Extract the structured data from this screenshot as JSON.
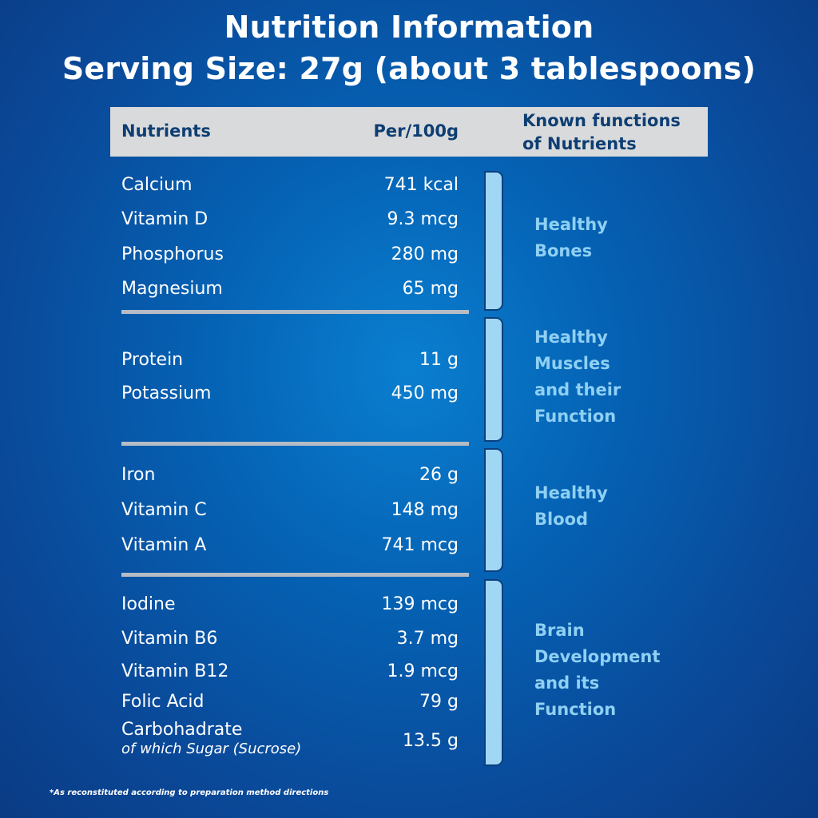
{
  "title": {
    "line1": "Nutrition Information",
    "line2": "Serving Size: 27g (about 3 tablespoons)"
  },
  "header": {
    "nutrients": "Nutrients",
    "per100g": "Per/100g",
    "functions": "Known functions\nof Nutrients"
  },
  "groups": [
    {
      "function": "Healthy\nBones",
      "rows": [
        {
          "name": "Calcium",
          "value": "741 kcal"
        },
        {
          "name": "Vitamin D",
          "value": "9.3 mcg"
        },
        {
          "name": "Phosphorus",
          "value": "280 mg"
        },
        {
          "name": "Magnesium",
          "value": "65 mg"
        }
      ]
    },
    {
      "function": "Healthy\nMuscles\nand their\nFunction",
      "rows": [
        {
          "name": "Protein",
          "value": "11 g"
        },
        {
          "name": "Potassium",
          "value": "450 mg"
        }
      ]
    },
    {
      "function": "Healthy\nBlood",
      "rows": [
        {
          "name": "Iron",
          "value": "26 g"
        },
        {
          "name": "Vitamin C",
          "value": "148 mg"
        },
        {
          "name": "Vitamin A",
          "value": "741 mcg"
        }
      ]
    },
    {
      "function": "Brain\nDevelopment\nand its\nFunction",
      "rows": [
        {
          "name": "Iodine",
          "value": "139 mcg"
        },
        {
          "name": "Vitamin B6",
          "value": "3.7 mg"
        },
        {
          "name": "Vitamin B12",
          "value": "1.9 mcg"
        },
        {
          "name": "Folic Acid",
          "value": "79 g"
        },
        {
          "name": "Carbohadrate",
          "sub": "of which Sugar (Sucrose)",
          "value": "13.5 g"
        }
      ]
    }
  ],
  "footnote": "*As reconstituted according to preparation method directions"
}
